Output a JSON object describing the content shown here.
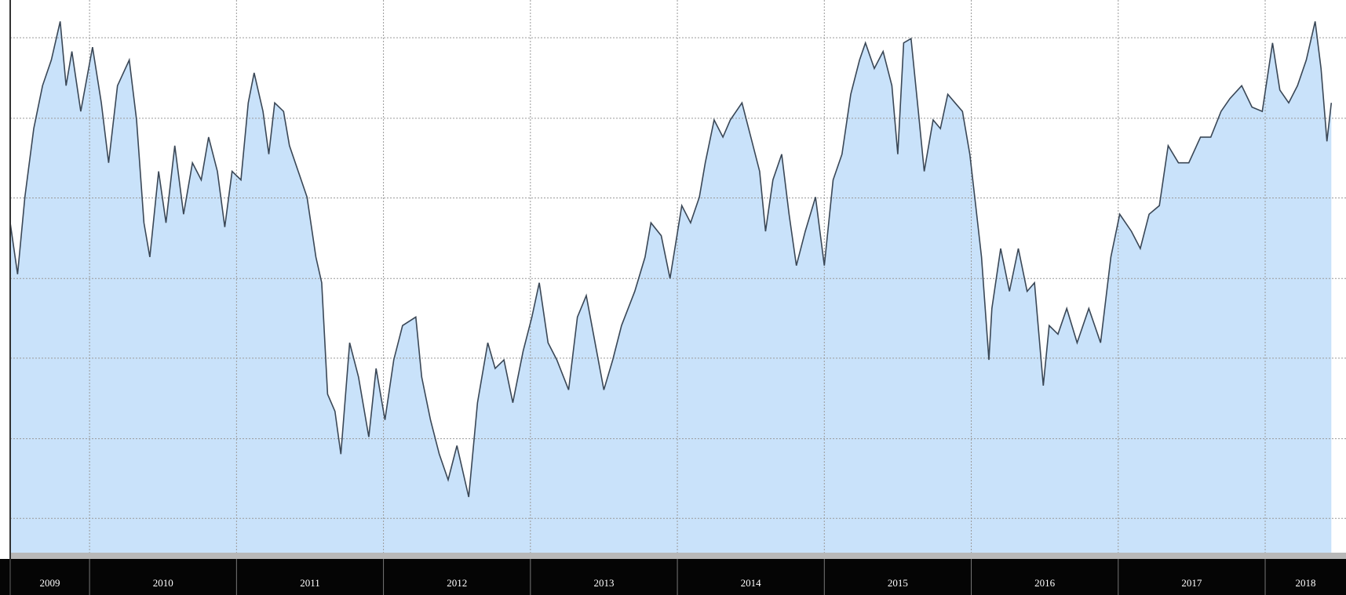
{
  "chart_data": {
    "type": "area",
    "x": [
      2009.46,
      2009.51,
      2009.56,
      2009.62,
      2009.68,
      2009.74,
      2009.8,
      2009.84,
      2009.88,
      2009.94,
      2010.02,
      2010.08,
      2010.13,
      2010.19,
      2010.27,
      2010.32,
      2010.37,
      2010.41,
      2010.47,
      2010.52,
      2010.58,
      2010.64,
      2010.7,
      2010.76,
      2010.81,
      2010.87,
      2010.92,
      2010.97,
      2011.03,
      2011.08,
      2011.12,
      2011.18,
      2011.22,
      2011.26,
      2011.32,
      2011.36,
      2011.42,
      2011.48,
      2011.54,
      2011.58,
      2011.62,
      2011.67,
      2011.71,
      2011.77,
      2011.83,
      2011.9,
      2011.95,
      2012.01,
      2012.07,
      2012.13,
      2012.22,
      2012.26,
      2012.32,
      2012.38,
      2012.44,
      2012.5,
      2012.58,
      2012.64,
      2012.71,
      2012.76,
      2012.82,
      2012.88,
      2012.95,
      2013.01,
      2013.06,
      2013.12,
      2013.18,
      2013.26,
      2013.32,
      2013.38,
      2013.44,
      2013.5,
      2013.56,
      2013.62,
      2013.71,
      2013.78,
      2013.82,
      2013.89,
      2013.95,
      2014.03,
      2014.09,
      2014.15,
      2014.19,
      2014.25,
      2014.31,
      2014.36,
      2014.44,
      2014.5,
      2014.56,
      2014.6,
      2014.65,
      2014.71,
      2014.76,
      2014.81,
      2014.87,
      2014.94,
      2015.0,
      2015.06,
      2015.12,
      2015.18,
      2015.24,
      2015.28,
      2015.34,
      2015.4,
      2015.46,
      2015.5,
      2015.54,
      2015.59,
      2015.64,
      2015.68,
      2015.74,
      2015.79,
      2015.84,
      2015.89,
      2015.94,
      2015.99,
      2016.03,
      2016.07,
      2016.12,
      2016.14,
      2016.2,
      2016.26,
      2016.32,
      2016.38,
      2016.43,
      2016.49,
      2016.53,
      2016.59,
      2016.65,
      2016.72,
      2016.8,
      2016.88,
      2016.95,
      2017.01,
      2017.09,
      2017.15,
      2017.21,
      2017.28,
      2017.34,
      2017.41,
      2017.48,
      2017.56,
      2017.63,
      2017.7,
      2017.76,
      2017.84,
      2017.91,
      2017.98,
      2018.05,
      2018.1,
      2018.16,
      2018.22,
      2018.28,
      2018.34,
      2018.38,
      2018.42,
      2018.45
    ],
    "series": [
      {
        "color": "#3a4756",
        "fill": "#c9e2fa",
        "values": [
          385,
          325,
          415,
          495,
          545,
          575,
          620,
          545,
          585,
          515,
          590,
          525,
          455,
          545,
          575,
          505,
          385,
          345,
          445,
          385,
          475,
          395,
          455,
          435,
          485,
          445,
          380,
          445,
          435,
          525,
          560,
          515,
          465,
          525,
          515,
          475,
          445,
          415,
          345,
          315,
          185,
          165,
          115,
          245,
          205,
          135,
          215,
          155,
          225,
          265,
          275,
          205,
          155,
          115,
          85,
          125,
          65,
          175,
          245,
          215,
          225,
          175,
          235,
          275,
          315,
          245,
          225,
          190,
          275,
          300,
          245,
          190,
          225,
          265,
          305,
          345,
          385,
          370,
          320,
          405,
          385,
          415,
          455,
          505,
          485,
          505,
          525,
          485,
          445,
          375,
          435,
          465,
          395,
          335,
          375,
          415,
          335,
          435,
          465,
          535,
          575,
          595,
          565,
          585,
          545,
          465,
          595,
          600,
          515,
          445,
          505,
          495,
          535,
          525,
          515,
          465,
          405,
          345,
          225,
          285,
          355,
          305,
          355,
          305,
          315,
          195,
          265,
          255,
          285,
          245,
          285,
          245,
          345,
          395,
          375,
          355,
          395,
          405,
          475,
          455,
          455,
          485,
          485,
          515,
          530,
          545,
          520,
          515,
          595,
          540,
          525,
          545,
          575,
          620,
          565,
          480,
          525
        ]
      }
    ],
    "xlim": [
      2009.46,
      2018.55
    ],
    "ylim": [
      0,
      645
    ],
    "yticks": [
      40,
      133,
      227,
      320,
      414,
      507,
      601
    ],
    "xticks": [
      2010,
      2011,
      2012,
      2013,
      2014,
      2015,
      2016,
      2017,
      2018
    ],
    "year_labels": [
      2009,
      2010,
      2011,
      2012,
      2013,
      2014,
      2015,
      2016,
      2017,
      2018
    ],
    "grid": true
  }
}
